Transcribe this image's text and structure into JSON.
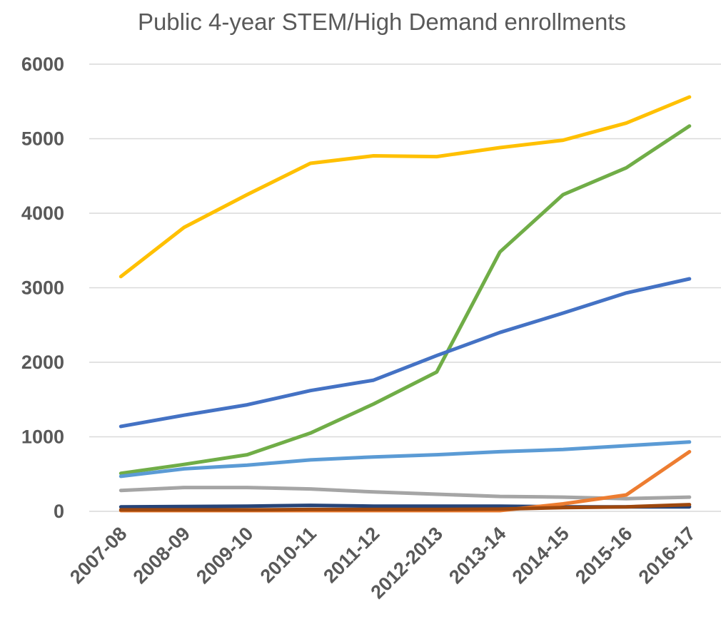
{
  "chart_data": {
    "type": "line",
    "title": "Public 4-year STEM/High Demand enrollments",
    "xlabel": "",
    "ylabel": "",
    "ylim": [
      0,
      6000
    ],
    "yticks": [
      0,
      1000,
      2000,
      3000,
      4000,
      5000,
      6000
    ],
    "grid": true,
    "legend": "none",
    "categories": [
      "2007-08",
      "2008-09",
      "2009-10",
      "2010-11",
      "2011-12",
      "2012-2013",
      "2013-14",
      "2014-15",
      "2015-16",
      "2016-17"
    ],
    "series": [
      {
        "color": "#ffc000",
        "values": [
          3150,
          3810,
          4250,
          4670,
          4770,
          4760,
          4880,
          4980,
          5210,
          5560
        ]
      },
      {
        "color": "#70ad47",
        "values": [
          510,
          630,
          760,
          1050,
          1440,
          1870,
          3480,
          4250,
          4610,
          5170
        ]
      },
      {
        "color": "#4472c4",
        "values": [
          1140,
          1290,
          1430,
          1620,
          1760,
          2090,
          2400,
          2660,
          2930,
          3120
        ]
      },
      {
        "color": "#5b9bd5",
        "values": [
          470,
          570,
          620,
          690,
          730,
          760,
          800,
          830,
          880,
          930
        ]
      },
      {
        "color": "#a5a5a5",
        "values": [
          280,
          320,
          320,
          300,
          260,
          230,
          200,
          190,
          170,
          190
        ]
      },
      {
        "color": "#264478",
        "values": [
          60,
          65,
          70,
          80,
          70,
          70,
          70,
          60,
          60,
          60
        ]
      },
      {
        "color": "#ed7d31",
        "values": [
          10,
          10,
          10,
          10,
          10,
          10,
          10,
          100,
          220,
          800
        ]
      },
      {
        "color": "#9e480e",
        "values": [
          20,
          20,
          20,
          25,
          25,
          25,
          30,
          50,
          60,
          90
        ]
      }
    ]
  }
}
